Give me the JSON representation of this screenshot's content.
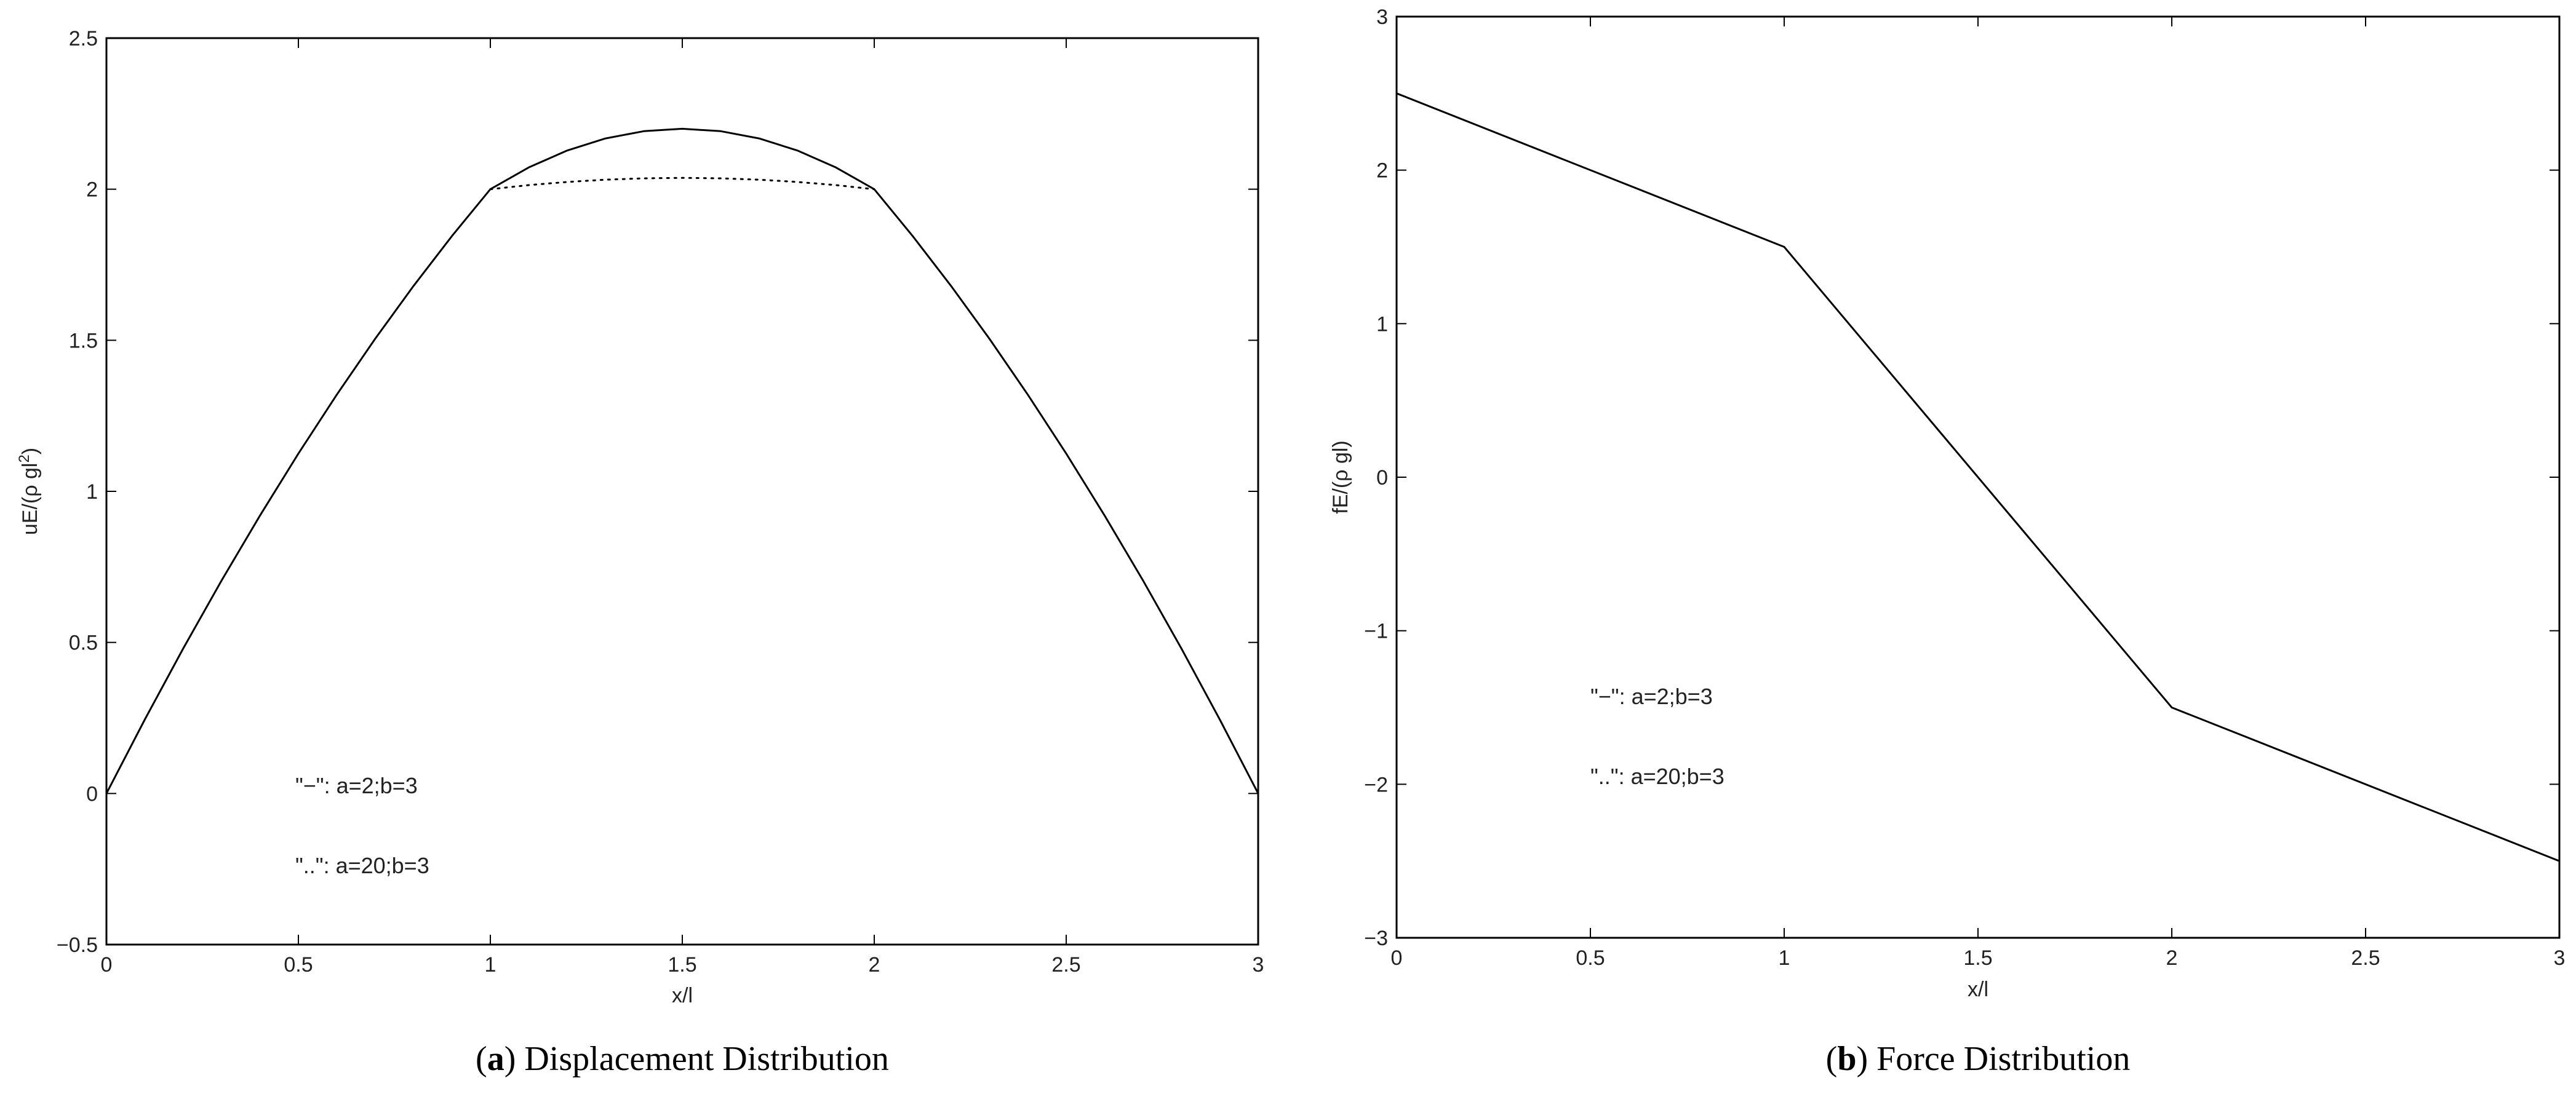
{
  "figures": [
    {
      "caption": {
        "open": "(",
        "letter": "a",
        "close": ")",
        "text": " Displacement Distribution"
      },
      "chart_data": {
        "type": "line",
        "title": "",
        "xlabel": "x/l",
        "ylabel_main": "uE/(ρ gl",
        "ylabel_sup": "2",
        "ylabel_end": ")",
        "xlim": [
          0,
          3
        ],
        "ylim": [
          -0.5,
          2.5
        ],
        "xticks": [
          0,
          0.5,
          1,
          1.5,
          2,
          2.5,
          3
        ],
        "xtick_labels": [
          "0",
          "0.5",
          "1",
          "1.5",
          "2",
          "2.5",
          "3"
        ],
        "yticks": [
          -0.5,
          0,
          0.5,
          1,
          1.5,
          2,
          2.5
        ],
        "ytick_labels": [
          "−0.5",
          "0",
          "0.5",
          "1",
          "1.5",
          "2",
          "2.5"
        ],
        "grid": false,
        "annotations": [
          "\"−\": a=2;b=3",
          "\"..\": a=20;b=3"
        ],
        "series": [
          {
            "style": "solid",
            "x": [
              0,
              0.1,
              0.2,
              0.3,
              0.4,
              0.5,
              0.6,
              0.7,
              0.8,
              0.9,
              1.0,
              1.1,
              1.2,
              1.3,
              1.4,
              1.5,
              1.6,
              1.7,
              1.8,
              1.9,
              2.0,
              2.1,
              2.2,
              2.3,
              2.4,
              2.5,
              2.6,
              2.7,
              2.8,
              2.9,
              3.0
            ],
            "values": [
              0,
              0.245,
              0.48,
              0.705,
              0.92,
              1.125,
              1.32,
              1.505,
              1.68,
              1.845,
              2.0,
              2.072,
              2.128,
              2.168,
              2.192,
              2.2,
              2.192,
              2.168,
              2.128,
              2.072,
              2.0,
              1.845,
              1.68,
              1.505,
              1.32,
              1.125,
              0.92,
              0.705,
              0.48,
              0.245,
              0
            ]
          },
          {
            "style": "dotted",
            "x": [
              1.0,
              1.1,
              1.2,
              1.3,
              1.4,
              1.5,
              1.6,
              1.7,
              1.8,
              1.9,
              2.0
            ],
            "values": [
              2.0,
              2.0135,
              2.024,
              2.0315,
              2.036,
              2.0375,
              2.036,
              2.0315,
              2.024,
              2.0135,
              2.0
            ]
          }
        ]
      }
    },
    {
      "caption": {
        "open": "(",
        "letter": "b",
        "close": ")",
        "text": " Force Distribution"
      },
      "chart_data": {
        "type": "line",
        "title": "",
        "xlabel": "x/l",
        "ylabel_main": "fE/(ρ gl)",
        "ylabel_sup": "",
        "ylabel_end": "",
        "xlim": [
          0,
          3
        ],
        "ylim": [
          -3,
          3
        ],
        "xticks": [
          0,
          0.5,
          1,
          1.5,
          2,
          2.5,
          3
        ],
        "xtick_labels": [
          "0",
          "0.5",
          "1",
          "1.5",
          "2",
          "2.5",
          "3"
        ],
        "yticks": [
          -3,
          -2,
          -1,
          0,
          1,
          2,
          3
        ],
        "ytick_labels": [
          "−3",
          "−2",
          "−1",
          "0",
          "1",
          "2",
          "3"
        ],
        "grid": false,
        "annotations": [
          "\"−\": a=2;b=3",
          "\"..\": a=20;b=3"
        ],
        "series": [
          {
            "style": "solid",
            "x": [
              0,
              1,
              2,
              3
            ],
            "values": [
              2.5,
              1.5,
              -1.5,
              -2.5
            ]
          }
        ]
      }
    }
  ]
}
